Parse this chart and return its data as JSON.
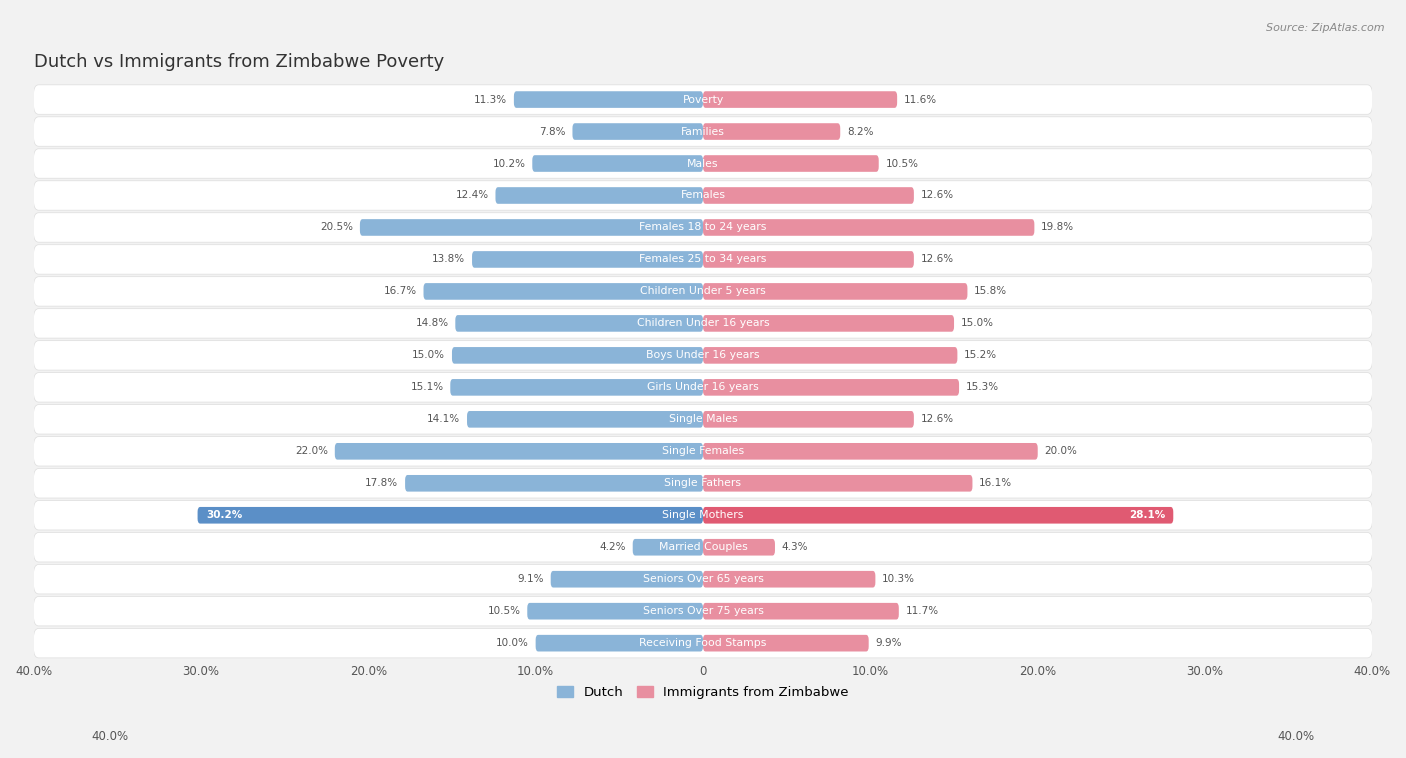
{
  "title": "Dutch vs Immigrants from Zimbabwe Poverty",
  "source": "Source: ZipAtlas.com",
  "categories": [
    "Poverty",
    "Families",
    "Males",
    "Females",
    "Females 18 to 24 years",
    "Females 25 to 34 years",
    "Children Under 5 years",
    "Children Under 16 years",
    "Boys Under 16 years",
    "Girls Under 16 years",
    "Single Males",
    "Single Females",
    "Single Fathers",
    "Single Mothers",
    "Married Couples",
    "Seniors Over 65 years",
    "Seniors Over 75 years",
    "Receiving Food Stamps"
  ],
  "dutch_values": [
    11.3,
    7.8,
    10.2,
    12.4,
    20.5,
    13.8,
    16.7,
    14.8,
    15.0,
    15.1,
    14.1,
    22.0,
    17.8,
    30.2,
    4.2,
    9.1,
    10.5,
    10.0
  ],
  "zimbabwe_values": [
    11.6,
    8.2,
    10.5,
    12.6,
    19.8,
    12.6,
    15.8,
    15.0,
    15.2,
    15.3,
    12.6,
    20.0,
    16.1,
    28.1,
    4.3,
    10.3,
    11.7,
    9.9
  ],
  "dutch_color": "#8ab4d8",
  "zimbabwe_color": "#e88fa0",
  "highlight_dutch_color": "#5b8fc7",
  "highlight_zimbabwe_color": "#e05a72",
  "background_color": "#f2f2f2",
  "row_bg": "#ffffff",
  "row_alt_bg": "#f7f7f7",
  "max_val": 40.0,
  "legend_dutch": "Dutch",
  "legend_zimbabwe": "Immigrants from Zimbabwe",
  "value_label_threshold": 25.0
}
